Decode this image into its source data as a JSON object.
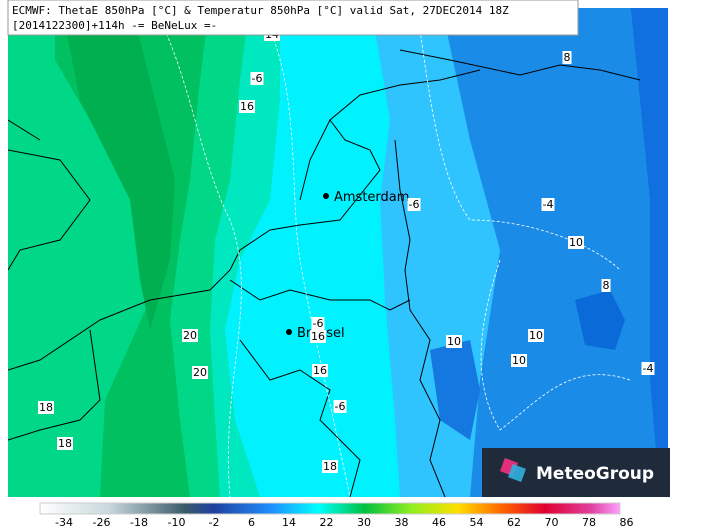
{
  "header": {
    "line1": "ECMWF: ThetaE 850hPa [°C] & Temperatur 850hPa [°C] valid Sat, 27DEC2014 18Z",
    "line2": "[2014122300]+114h  -= BeNeLux =-"
  },
  "cities": [
    "Amsterdam",
    "Brussel"
  ],
  "contour_labels": [
    "14",
    "-6",
    "16",
    "8",
    "-6",
    "-4",
    "10",
    "8",
    "10",
    "10",
    "-6",
    "16",
    "20",
    "20",
    "16",
    "-6",
    "18",
    "18",
    "18",
    "-4",
    "10"
  ],
  "logo": "MeteoGroup",
  "colorbar": {
    "labels": [
      -34,
      -26,
      -18,
      -10,
      -2,
      6,
      14,
      22,
      30,
      38,
      46,
      54,
      62,
      70,
      78,
      86
    ]
  }
}
